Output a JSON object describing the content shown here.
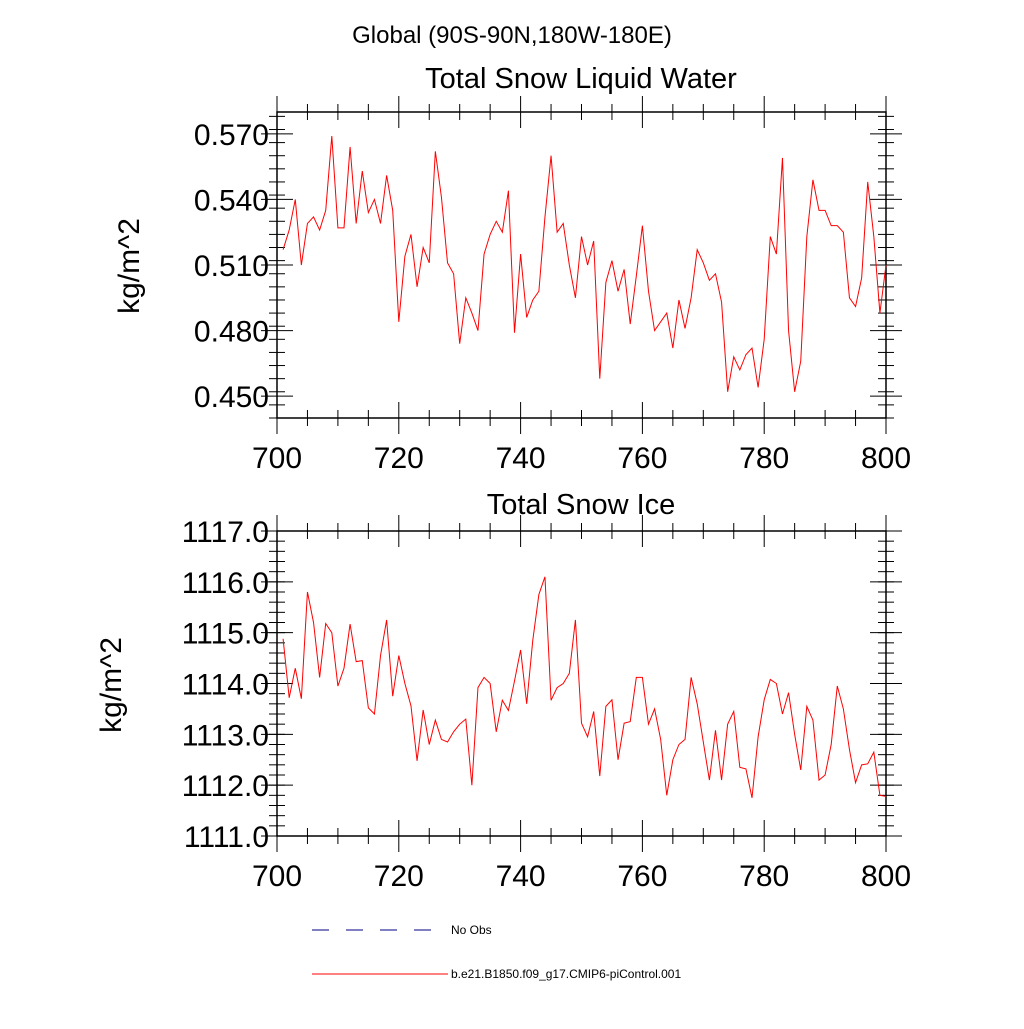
{
  "figure": {
    "region_title": "Global (90S-90N,180W-180E)"
  },
  "chart_data": [
    {
      "type": "line",
      "title": "Total Snow Liquid Water",
      "xlabel": "",
      "ylabel": "kg/m^2",
      "xlim": [
        700,
        800
      ],
      "ylim": [
        0.44,
        0.58
      ],
      "x_ticks": [
        700,
        720,
        740,
        760,
        780,
        800
      ],
      "x_tick_labels": [
        "700",
        "720",
        "740",
        "760",
        "780",
        "800"
      ],
      "y_ticks": [
        0.45,
        0.48,
        0.51,
        0.54,
        0.57
      ],
      "y_tick_labels": [
        "0.450",
        "0.480",
        "0.510",
        "0.540",
        "0.570"
      ],
      "grid": false,
      "series": [
        {
          "name": "b.e21.B1850.f09_g17.CMIP6-piControl.001",
          "color": "#ff0000",
          "x": [
            701,
            702,
            703,
            704,
            705,
            706,
            707,
            708,
            709,
            710,
            711,
            712,
            713,
            714,
            715,
            716,
            717,
            718,
            719,
            720,
            721,
            722,
            723,
            724,
            725,
            726,
            727,
            728,
            729,
            730,
            731,
            732,
            733,
            734,
            735,
            736,
            737,
            738,
            739,
            740,
            741,
            742,
            743,
            744,
            745,
            746,
            747,
            748,
            749,
            750,
            751,
            752,
            753,
            754,
            755,
            756,
            757,
            758,
            759,
            760,
            761,
            762,
            763,
            764,
            765,
            766,
            767,
            768,
            769,
            770,
            771,
            772,
            773,
            774,
            775,
            776,
            777,
            778,
            779,
            780,
            781,
            782,
            783,
            784,
            785,
            786,
            787,
            788,
            789,
            790,
            791,
            792,
            793,
            794,
            795,
            796,
            797,
            798,
            799,
            800
          ],
          "values": [
            0.517,
            0.526,
            0.54,
            0.51,
            0.529,
            0.532,
            0.526,
            0.535,
            0.569,
            0.527,
            0.527,
            0.564,
            0.529,
            0.553,
            0.534,
            0.54,
            0.529,
            0.551,
            0.535,
            0.484,
            0.514,
            0.524,
            0.5,
            0.518,
            0.511,
            0.562,
            0.541,
            0.511,
            0.506,
            0.474,
            0.495,
            0.488,
            0.48,
            0.515,
            0.524,
            0.53,
            0.525,
            0.544,
            0.479,
            0.515,
            0.486,
            0.494,
            0.498,
            0.532,
            0.56,
            0.525,
            0.529,
            0.51,
            0.495,
            0.523,
            0.51,
            0.521,
            0.458,
            0.502,
            0.512,
            0.498,
            0.508,
            0.483,
            0.505,
            0.528,
            0.498,
            0.48,
            0.484,
            0.488,
            0.472,
            0.494,
            0.481,
            0.495,
            0.517,
            0.511,
            0.503,
            0.506,
            0.493,
            0.452,
            0.468,
            0.462,
            0.469,
            0.472,
            0.454,
            0.476,
            0.523,
            0.515,
            0.559,
            0.48,
            0.452,
            0.466,
            0.523,
            0.549,
            0.535,
            0.535,
            0.528,
            0.528,
            0.525,
            0.495,
            0.491,
            0.504,
            0.548,
            0.523,
            0.488,
            0.51
          ]
        }
      ]
    },
    {
      "type": "line",
      "title": "Total Snow Ice",
      "xlabel": "",
      "ylabel": "kg/m^2",
      "xlim": [
        700,
        800
      ],
      "ylim": [
        1111.0,
        1117.0
      ],
      "x_ticks": [
        700,
        720,
        740,
        760,
        780,
        800
      ],
      "x_tick_labels": [
        "700",
        "720",
        "740",
        "760",
        "780",
        "800"
      ],
      "y_ticks": [
        1111,
        1112,
        1113,
        1114,
        1115,
        1116,
        1117
      ],
      "y_tick_labels": [
        "1111.0",
        "1112.0",
        "1113.0",
        "1114.0",
        "1115.0",
        "1116.0",
        "1117.0"
      ],
      "grid": false,
      "series": [
        {
          "name": "b.e21.B1850.f09_g17.CMIP6-piControl.001",
          "color": "#ff0000",
          "x": [
            701,
            702,
            703,
            704,
            705,
            706,
            707,
            708,
            709,
            710,
            711,
            712,
            713,
            714,
            715,
            716,
            717,
            718,
            719,
            720,
            721,
            722,
            723,
            724,
            725,
            726,
            727,
            728,
            729,
            730,
            731,
            732,
            733,
            734,
            735,
            736,
            737,
            738,
            739,
            740,
            741,
            742,
            743,
            744,
            745,
            746,
            747,
            748,
            749,
            750,
            751,
            752,
            753,
            754,
            755,
            756,
            757,
            758,
            759,
            760,
            761,
            762,
            763,
            764,
            765,
            766,
            767,
            768,
            769,
            770,
            771,
            772,
            773,
            774,
            775,
            776,
            777,
            778,
            779,
            780,
            781,
            782,
            783,
            784,
            785,
            786,
            787,
            788,
            789,
            790,
            791,
            792,
            793,
            794,
            795,
            796,
            797,
            798,
            799,
            800
          ],
          "values": [
            1114.88,
            1113.72,
            1114.3,
            1113.7,
            1115.8,
            1115.2,
            1114.12,
            1115.18,
            1115.0,
            1113.95,
            1114.3,
            1115.17,
            1114.43,
            1114.45,
            1113.52,
            1113.4,
            1114.55,
            1115.25,
            1113.75,
            1114.55,
            1114.0,
            1113.56,
            1112.48,
            1113.48,
            1112.8,
            1113.28,
            1112.9,
            1112.85,
            1113.05,
            1113.2,
            1113.3,
            1112.0,
            1113.92,
            1114.12,
            1114.0,
            1113.05,
            1113.67,
            1113.47,
            1114.05,
            1114.66,
            1113.6,
            1114.85,
            1115.75,
            1116.1,
            1113.67,
            1113.92,
            1114.0,
            1114.2,
            1115.25,
            1113.22,
            1112.95,
            1113.45,
            1112.18,
            1113.55,
            1113.68,
            1112.5,
            1113.22,
            1113.25,
            1114.12,
            1114.12,
            1113.2,
            1113.5,
            1112.9,
            1111.8,
            1112.5,
            1112.8,
            1112.9,
            1114.12,
            1113.6,
            1112.85,
            1112.1,
            1113.08,
            1112.1,
            1113.2,
            1113.45,
            1112.35,
            1112.32,
            1111.75,
            1112.95,
            1113.68,
            1114.08,
            1114.0,
            1113.4,
            1113.82,
            1113.0,
            1112.3,
            1113.55,
            1113.28,
            1112.1,
            1112.2,
            1112.8,
            1113.95,
            1113.5,
            1112.7,
            1112.05,
            1112.4,
            1112.42,
            1112.65,
            1111.8,
            1111.78
          ]
        }
      ]
    }
  ],
  "legend": {
    "items": [
      {
        "label": "No Obs",
        "color": "#000080",
        "dash": "dashed"
      },
      {
        "label": "b.e21.B1850.f09_g17.CMIP6-piControl.001",
        "color": "#ff0000",
        "dash": "solid"
      }
    ]
  }
}
